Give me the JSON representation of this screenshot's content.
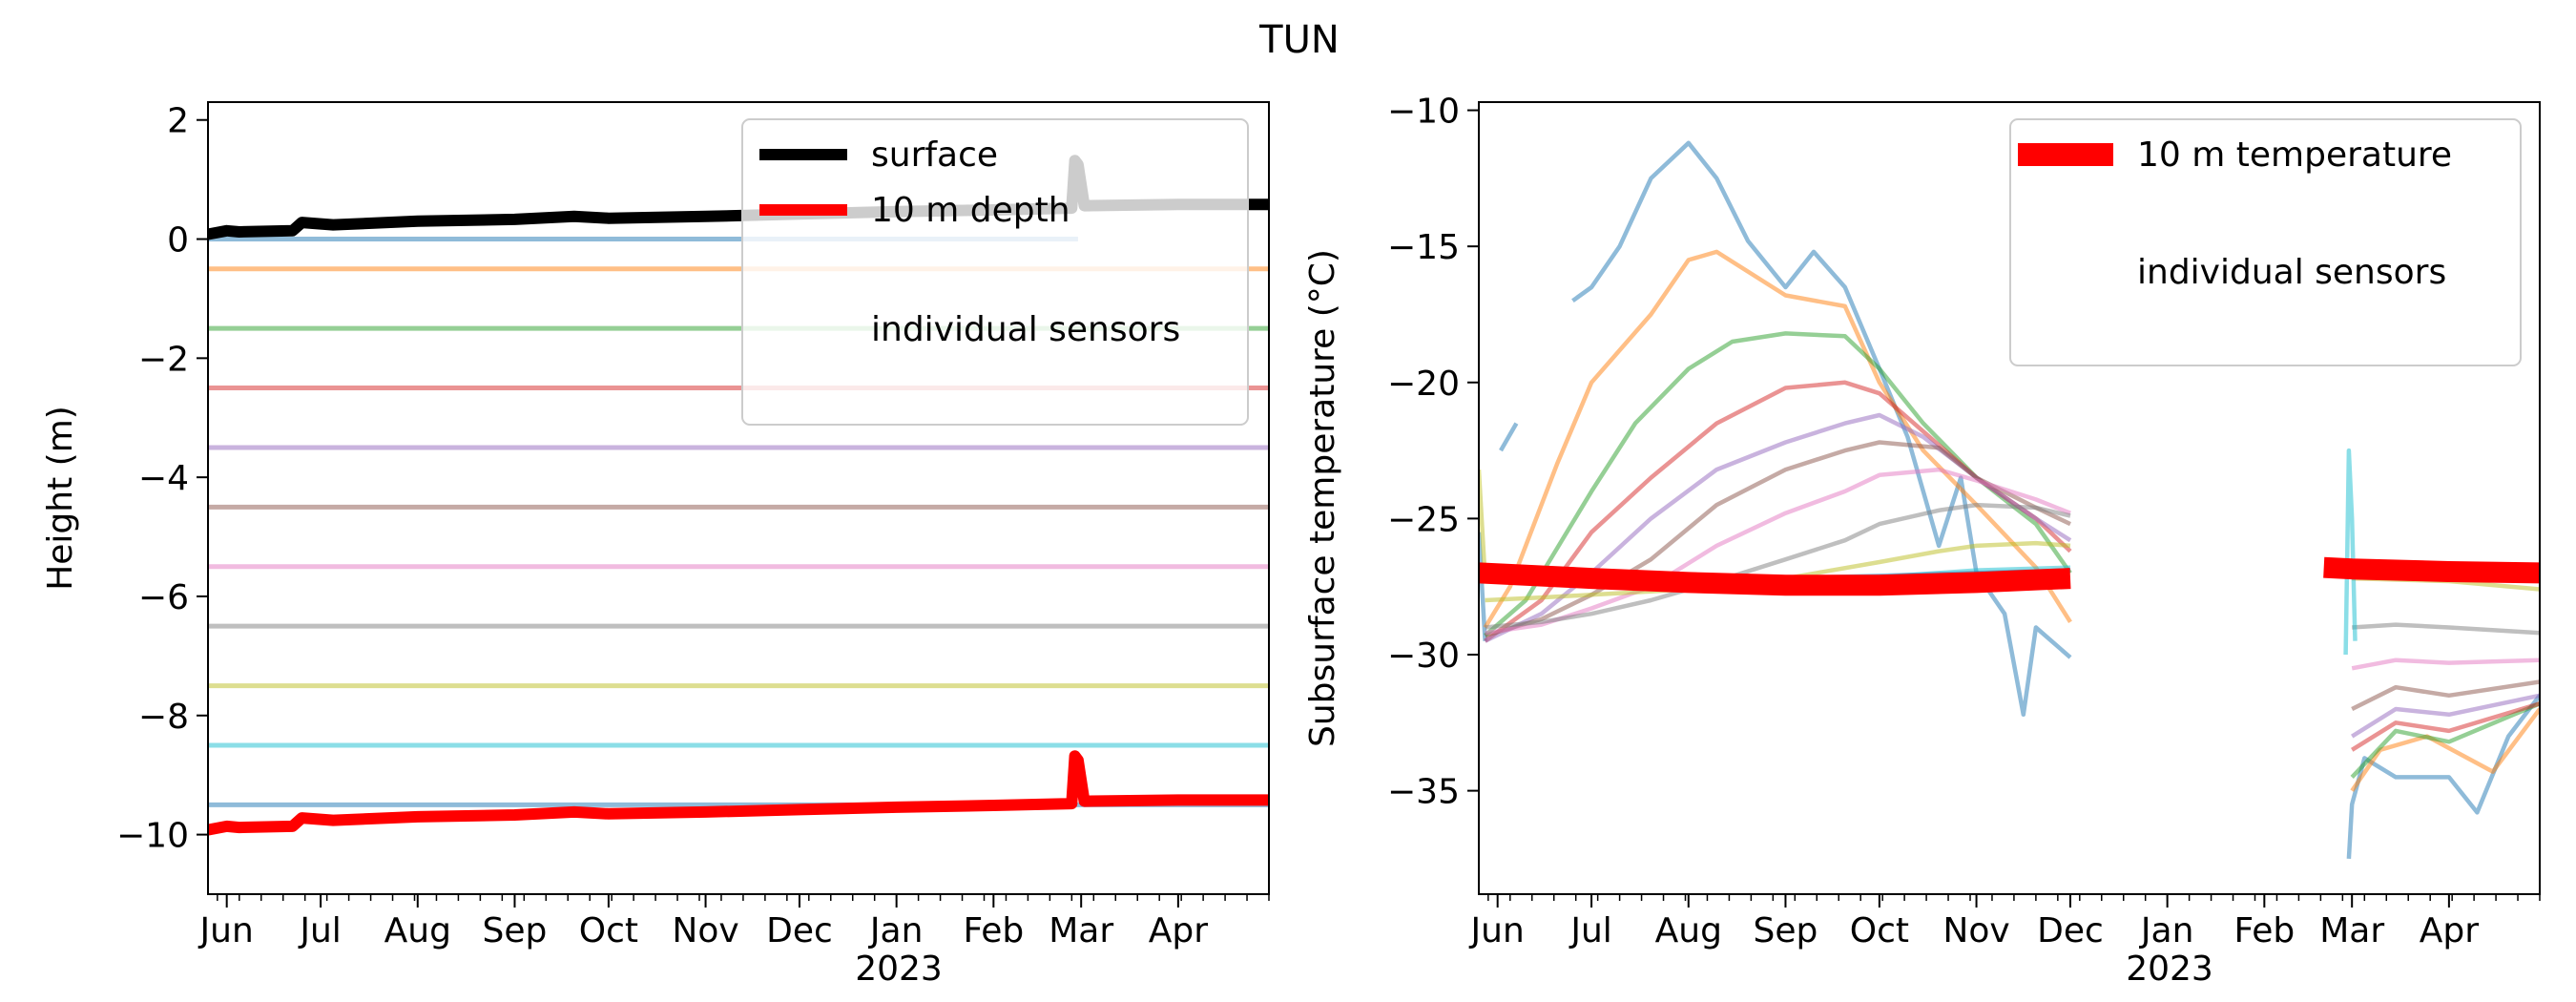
{
  "figure": {
    "title": "TUN",
    "year_label": "2023"
  },
  "colors": {
    "surface": "#000000",
    "depth10": "#ff0000",
    "temp10": "#ff0000",
    "sensors": [
      "#1f77b4",
      "#ff7f0e",
      "#2ca02c",
      "#d62728",
      "#9467bd",
      "#8c564b",
      "#e377c2",
      "#7f7f7f",
      "#bcbd22",
      "#17becf",
      "#1f77b4"
    ]
  },
  "chart_data": [
    {
      "type": "line",
      "title": "",
      "xlabel": "",
      "ylabel": "Height (m)",
      "x_axis": "date",
      "xlim": [
        "2022-05-26",
        "2023-04-30"
      ],
      "ylim": [
        -11,
        2.3
      ],
      "yticks": [
        2,
        0,
        -2,
        -4,
        -6,
        -8,
        -10
      ],
      "ytick_labels": [
        "2",
        "0",
        "−2",
        "−4",
        "−6",
        "−8",
        "−10"
      ],
      "xticks": [
        "2022-06-01",
        "2022-07-01",
        "2022-08-01",
        "2022-09-01",
        "2022-10-01",
        "2022-11-01",
        "2022-12-01",
        "2023-01-01",
        "2023-02-01",
        "2023-03-01",
        "2023-04-01"
      ],
      "xtick_labels": [
        "Jun",
        "Jul",
        "Aug",
        "Sep",
        "Oct",
        "Nov",
        "Dec",
        "Jan",
        "Feb",
        "Mar",
        "Apr"
      ],
      "legend": {
        "placement": "upper-right",
        "entries": [
          "surface",
          "10 m depth",
          "individual sensors"
        ]
      },
      "sensor_depths": [
        {
          "y": 0.0,
          "x_start": "2022-05-26",
          "x_end": "2023-02-28"
        },
        {
          "y": -0.5,
          "x_start": "2022-05-26",
          "x_end": "2023-04-30"
        },
        {
          "y": -1.5,
          "x_start": "2022-05-26",
          "x_end": "2023-04-30"
        },
        {
          "y": -2.5,
          "x_start": "2022-05-26",
          "x_end": "2023-04-30"
        },
        {
          "y": -3.5,
          "x_start": "2022-05-26",
          "x_end": "2023-04-30"
        },
        {
          "y": -4.5,
          "x_start": "2022-05-26",
          "x_end": "2023-04-30"
        },
        {
          "y": -5.5,
          "x_start": "2022-05-26",
          "x_end": "2023-04-30"
        },
        {
          "y": -6.5,
          "x_start": "2022-05-26",
          "x_end": "2023-04-30"
        },
        {
          "y": -7.5,
          "x_start": "2022-05-26",
          "x_end": "2023-04-30"
        },
        {
          "y": -8.5,
          "x_start": "2022-05-26",
          "x_end": "2023-04-30"
        },
        {
          "y": -9.5,
          "x_start": "2022-05-26",
          "x_end": "2023-04-30"
        }
      ],
      "series": [
        {
          "name": "surface",
          "x": [
            "2022-05-26",
            "2022-06-01",
            "2022-06-05",
            "2022-06-22",
            "2022-06-25",
            "2022-07-05",
            "2022-08-01",
            "2022-09-01",
            "2022-09-20",
            "2022-10-01",
            "2022-11-01",
            "2022-12-01",
            "2023-01-01",
            "2023-02-01",
            "2023-02-26",
            "2023-02-27",
            "2023-02-28",
            "2023-03-02",
            "2023-04-01",
            "2023-04-30"
          ],
          "y": [
            0.08,
            0.14,
            0.12,
            0.14,
            0.28,
            0.24,
            0.3,
            0.33,
            0.38,
            0.35,
            0.38,
            0.42,
            0.46,
            0.49,
            0.52,
            1.32,
            1.25,
            0.56,
            0.58,
            0.58
          ]
        },
        {
          "name": "10 m depth",
          "x": [
            "2022-05-26",
            "2022-06-01",
            "2022-06-05",
            "2022-06-22",
            "2022-06-25",
            "2022-07-05",
            "2022-08-01",
            "2022-09-01",
            "2022-09-20",
            "2022-10-01",
            "2022-11-01",
            "2022-12-01",
            "2023-01-01",
            "2023-02-01",
            "2023-02-26",
            "2023-02-27",
            "2023-02-28",
            "2023-03-02",
            "2023-04-01",
            "2023-04-30"
          ],
          "y": [
            -9.92,
            -9.86,
            -9.88,
            -9.86,
            -9.72,
            -9.76,
            -9.7,
            -9.67,
            -9.62,
            -9.65,
            -9.62,
            -9.58,
            -9.54,
            -9.51,
            -9.48,
            -8.68,
            -8.75,
            -9.44,
            -9.42,
            -9.42
          ]
        }
      ]
    },
    {
      "type": "line",
      "title": "",
      "xlabel": "",
      "ylabel": "Subsurface temperature (°C)",
      "x_axis": "date",
      "xlim": [
        "2022-05-26",
        "2023-04-30"
      ],
      "ylim": [
        -38.8,
        -9.7
      ],
      "yticks": [
        -10,
        -15,
        -20,
        -25,
        -30,
        -35
      ],
      "ytick_labels": [
        "−10",
        "−15",
        "−20",
        "−25",
        "−30",
        "−35"
      ],
      "xticks": [
        "2022-06-01",
        "2022-07-01",
        "2022-08-01",
        "2022-09-01",
        "2022-10-01",
        "2022-11-01",
        "2022-12-01",
        "2023-01-01",
        "2023-02-01",
        "2023-03-01",
        "2023-04-01"
      ],
      "xtick_labels": [
        "Jun",
        "Jul",
        "Aug",
        "Sep",
        "Oct",
        "Nov",
        "Dec",
        "Jan",
        "Feb",
        "Mar",
        "Apr"
      ],
      "legend": {
        "placement": "upper-right",
        "entries": [
          "10 m temperature",
          "individual sensors"
        ]
      },
      "series": [
        {
          "name": "10 m temperature",
          "segments": [
            {
              "x": [
                "2022-05-26",
                "2022-07-01",
                "2022-08-01",
                "2022-09-01",
                "2022-10-01",
                "2022-11-01",
                "2022-12-01"
              ],
              "y": [
                -27.0,
                -27.2,
                -27.35,
                -27.45,
                -27.45,
                -27.35,
                -27.2
              ]
            },
            {
              "x": [
                "2023-02-20",
                "2023-03-01",
                "2023-04-01",
                "2023-04-30"
              ],
              "y": [
                -26.8,
                -26.85,
                -26.95,
                -27.0
              ]
            }
          ]
        }
      ],
      "sensor_series": [
        {
          "segments": [
            {
              "x": [
                "2022-05-26",
                "2022-05-28"
              ],
              "y": [
                -25.5,
                -29.5
              ]
            },
            {
              "x": [
                "2022-06-02",
                "2022-06-07"
              ],
              "y": [
                -22.5,
                -21.5
              ]
            },
            {
              "x": [
                "2022-06-25",
                "2022-07-01",
                "2022-07-10",
                "2022-07-20",
                "2022-08-01",
                "2022-08-10",
                "2022-08-20",
                "2022-09-01",
                "2022-09-10",
                "2022-09-20",
                "2022-10-01",
                "2022-10-10",
                "2022-10-20",
                "2022-10-27",
                "2022-11-01",
                "2022-11-10",
                "2022-11-16",
                "2022-11-20",
                "2022-12-01"
              ],
              "y": [
                -17,
                -16.5,
                -15,
                -12.5,
                -11.2,
                -12.5,
                -14.8,
                -16.5,
                -15.2,
                -16.5,
                -19.5,
                -22,
                -26,
                -23.5,
                -27,
                -28.5,
                -32.2,
                -29,
                -30.1
              ]
            },
            {
              "x": [
                "2023-02-28",
                "2023-03-01",
                "2023-03-05",
                "2023-03-15",
                "2023-04-01",
                "2023-04-10",
                "2023-04-20",
                "2023-04-30"
              ],
              "y": [
                -37.5,
                -35.5,
                -33.8,
                -34.5,
                -34.5,
                -35.8,
                -33,
                -31.5
              ]
            }
          ]
        },
        {
          "segments": [
            {
              "x": [
                "2022-05-28",
                "2022-06-05",
                "2022-06-20",
                "2022-07-01",
                "2022-07-20",
                "2022-08-01",
                "2022-08-10",
                "2022-09-01",
                "2022-09-20",
                "2022-10-01",
                "2022-10-15",
                "2022-11-01",
                "2022-11-20",
                "2022-12-01"
              ],
              "y": [
                -29,
                -27.5,
                -23,
                -20,
                -17.5,
                -15.5,
                -15.2,
                -16.8,
                -17.2,
                -20,
                -22.5,
                -24.5,
                -26.8,
                -28.8
              ]
            },
            {
              "x": [
                "2023-03-01",
                "2023-03-10",
                "2023-03-25",
                "2023-04-15",
                "2023-04-30"
              ],
              "y": [
                -35,
                -33.5,
                -33,
                -34.3,
                -32
              ]
            }
          ]
        },
        {
          "segments": [
            {
              "x": [
                "2022-05-28",
                "2022-06-10",
                "2022-07-01",
                "2022-07-15",
                "2022-08-01",
                "2022-08-15",
                "2022-09-01",
                "2022-09-20",
                "2022-10-01",
                "2022-10-15",
                "2022-11-01",
                "2022-11-20",
                "2022-12-01"
              ],
              "y": [
                -29.3,
                -28,
                -24,
                -21.5,
                -19.5,
                -18.5,
                -18.2,
                -18.3,
                -19.5,
                -21.5,
                -23.5,
                -25.2,
                -27
              ]
            },
            {
              "x": [
                "2023-03-01",
                "2023-03-15",
                "2023-04-01",
                "2023-04-30"
              ],
              "y": [
                -34.5,
                -32.8,
                -33.2,
                -31.8
              ]
            }
          ]
        },
        {
          "segments": [
            {
              "x": [
                "2022-05-28",
                "2022-06-15",
                "2022-07-01",
                "2022-07-20",
                "2022-08-10",
                "2022-09-01",
                "2022-09-20",
                "2022-10-01",
                "2022-10-15",
                "2022-11-01",
                "2022-11-20",
                "2022-12-01"
              ],
              "y": [
                -29.5,
                -28,
                -25.5,
                -23.5,
                -21.5,
                -20.2,
                -20,
                -20.4,
                -21.8,
                -23.5,
                -25,
                -26.2
              ]
            },
            {
              "x": [
                "2023-03-01",
                "2023-03-15",
                "2023-04-01",
                "2023-04-30"
              ],
              "y": [
                -33.5,
                -32.5,
                -32.8,
                -31.8
              ]
            }
          ]
        },
        {
          "segments": [
            {
              "x": [
                "2022-05-28",
                "2022-06-15",
                "2022-07-01",
                "2022-07-20",
                "2022-08-10",
                "2022-09-01",
                "2022-09-20",
                "2022-10-01",
                "2022-10-15",
                "2022-11-01",
                "2022-11-20",
                "2022-12-01"
              ],
              "y": [
                -29.5,
                -28.5,
                -27,
                -25,
                -23.2,
                -22.2,
                -21.5,
                -21.2,
                -22,
                -23.5,
                -25,
                -25.8
              ]
            },
            {
              "x": [
                "2023-03-01",
                "2023-03-15",
                "2023-04-01",
                "2023-04-30"
              ],
              "y": [
                -33,
                -32,
                -32.2,
                -31.5
              ]
            }
          ]
        },
        {
          "segments": [
            {
              "x": [
                "2022-05-28",
                "2022-06-15",
                "2022-07-01",
                "2022-07-20",
                "2022-08-10",
                "2022-09-01",
                "2022-09-20",
                "2022-10-01",
                "2022-10-20",
                "2022-11-01",
                "2022-11-20",
                "2022-12-01"
              ],
              "y": [
                -29.3,
                -28.7,
                -27.8,
                -26.5,
                -24.5,
                -23.2,
                -22.5,
                -22.2,
                -22.4,
                -23.5,
                -24.6,
                -25.2
              ]
            },
            {
              "x": [
                "2023-03-01",
                "2023-03-15",
                "2023-04-01",
                "2023-04-30"
              ],
              "y": [
                -32,
                -31.2,
                -31.5,
                -31
              ]
            }
          ]
        },
        {
          "segments": [
            {
              "x": [
                "2022-05-28",
                "2022-06-15",
                "2022-07-01",
                "2022-07-20",
                "2022-08-10",
                "2022-09-01",
                "2022-09-20",
                "2022-10-01",
                "2022-10-20",
                "2022-11-01",
                "2022-11-20",
                "2022-12-01"
              ],
              "y": [
                -29.2,
                -28.9,
                -28.3,
                -27.5,
                -26,
                -24.8,
                -24,
                -23.4,
                -23.2,
                -23.6,
                -24.3,
                -24.8
              ]
            },
            {
              "x": [
                "2023-03-01",
                "2023-03-15",
                "2023-04-01",
                "2023-04-30"
              ],
              "y": [
                -30.5,
                -30.2,
                -30.3,
                -30.2
              ]
            }
          ]
        },
        {
          "segments": [
            {
              "x": [
                "2022-05-28",
                "2022-06-15",
                "2022-07-01",
                "2022-07-20",
                "2022-08-10",
                "2022-09-01",
                "2022-09-20",
                "2022-10-01",
                "2022-10-20",
                "2022-11-01",
                "2022-11-20",
                "2022-12-01"
              ],
              "y": [
                -29,
                -28.8,
                -28.5,
                -28,
                -27.3,
                -26.5,
                -25.8,
                -25.2,
                -24.7,
                -24.5,
                -24.6,
                -24.9
              ]
            },
            {
              "x": [
                "2023-03-01",
                "2023-03-15",
                "2023-04-01",
                "2023-04-30"
              ],
              "y": [
                -29,
                -28.9,
                -29,
                -29.2
              ]
            }
          ]
        },
        {
          "segments": [
            {
              "x": [
                "2022-05-26",
                "2022-05-28"
              ],
              "y": [
                -23.2,
                -27.2
              ]
            },
            {
              "x": [
                "2022-05-28",
                "2022-06-15",
                "2022-07-01",
                "2022-08-01",
                "2022-09-01",
                "2022-10-01",
                "2022-10-20",
                "2022-11-01",
                "2022-11-20",
                "2022-12-01"
              ],
              "y": [
                -28,
                -27.9,
                -27.8,
                -27.6,
                -27.2,
                -26.6,
                -26.2,
                -26,
                -25.9,
                -26
              ]
            },
            {
              "x": [
                "2023-03-01",
                "2023-04-01",
                "2023-04-30"
              ],
              "y": [
                -27.2,
                -27.3,
                -27.6
              ]
            }
          ]
        },
        {
          "segments": [
            {
              "x": [
                "2022-05-28",
                "2022-07-01",
                "2022-08-01",
                "2022-09-01",
                "2022-10-01",
                "2022-11-01",
                "2022-12-01"
              ],
              "y": [
                -27.2,
                -27.3,
                -27.35,
                -27.3,
                -27.15,
                -26.9,
                -26.8
              ]
            },
            {
              "x": [
                "2023-02-27",
                "2023-02-28",
                "2023-03-01",
                "2023-03-02"
              ],
              "y": [
                -30,
                -22.5,
                -25,
                -29.5
              ]
            }
          ]
        },
        {
          "segments": [
            {
              "x": [
                "2022-05-28",
                "2022-07-01",
                "2022-09-01",
                "2022-11-01",
                "2022-12-01"
              ],
              "y": [
                -26.9,
                -27.1,
                -27.2,
                -27.0,
                -26.9
              ]
            }
          ]
        }
      ]
    }
  ]
}
